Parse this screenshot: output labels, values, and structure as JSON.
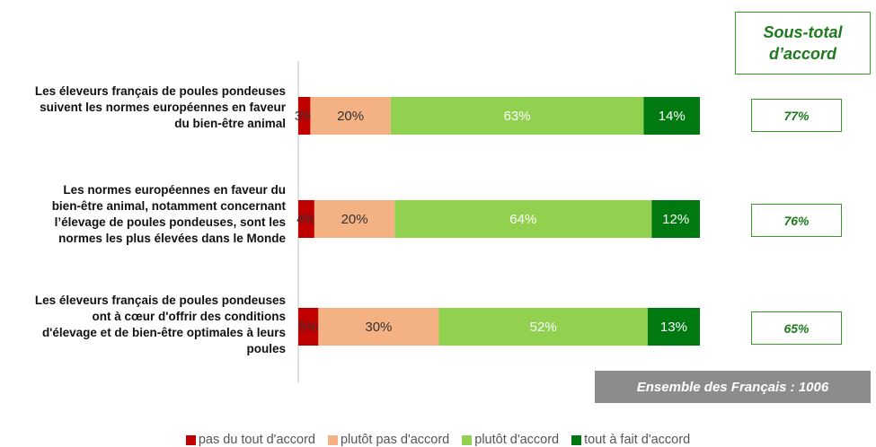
{
  "chart_data": {
    "type": "bar",
    "orientation": "horizontal",
    "stacked": true,
    "categories": [
      "Les éleveurs français de poules pondeuses suivent les normes européennes en faveur du bien-être animal",
      "Les normes européennes en faveur du bien-être animal, notamment concernant l’élevage de poules pondeuses, sont les normes les plus élevées dans le Monde",
      "Les éleveurs français de poules pondeuses ont à cœur d'offrir des conditions d'élevage et de bien-être optimales à leurs poules"
    ],
    "series": [
      {
        "name": "pas du tout d'accord",
        "color": "#c00000",
        "values": [
          3,
          4,
          5
        ]
      },
      {
        "name": "plutôt pas d'accord",
        "color": "#f4b183",
        "values": [
          20,
          20,
          30
        ]
      },
      {
        "name": "plutôt d'accord",
        "color": "#92d050",
        "values": [
          63,
          64,
          52
        ]
      },
      {
        "name": "tout à fait d'accord",
        "color": "#007a10",
        "values": [
          14,
          12,
          13
        ]
      }
    ],
    "xlim": [
      0,
      100
    ],
    "legend_position": "bottom"
  },
  "subtotal": {
    "header": [
      "Sous-total",
      "d’accord"
    ],
    "values": [
      "77%",
      "76%",
      "65%"
    ]
  },
  "base_note": "Ensemble des Français : 1006",
  "label_lines": [
    [
      "Les éleveurs français de poules pondeuses",
      "suivent les normes européennes en faveur",
      "du bien-être animal"
    ],
    [
      "Les normes européennes en faveur du",
      "bien-être animal, notamment concernant",
      "l’élevage de poules pondeuses, sont les",
      "normes les plus élevées dans le Monde"
    ],
    [
      "Les éleveurs français de poules pondeuses",
      "ont à cœur d'offrir des conditions",
      "d'élevage et de bien-être optimales à leurs",
      "poules"
    ]
  ]
}
